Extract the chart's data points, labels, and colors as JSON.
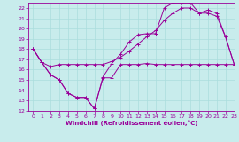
{
  "title": "",
  "xlabel": "Windchill (Refroidissement éolien,°C)",
  "ylabel": "",
  "background_color": "#c8ecec",
  "line_color": "#990099",
  "grid_color": "#aadddd",
  "xlim": [
    -0.5,
    23
  ],
  "ylim": [
    12,
    22.5
  ],
  "xticks": [
    0,
    1,
    2,
    3,
    4,
    5,
    6,
    7,
    8,
    9,
    10,
    11,
    12,
    13,
    14,
    15,
    16,
    17,
    18,
    19,
    20,
    21,
    22,
    23
  ],
  "yticks": [
    12,
    13,
    14,
    15,
    16,
    17,
    18,
    19,
    20,
    21,
    22
  ],
  "line1_x": [
    0,
    1,
    2,
    3,
    4,
    5,
    6,
    7,
    8,
    9,
    10,
    11,
    12,
    13,
    14,
    15,
    16,
    17,
    18,
    19,
    20,
    21,
    22,
    23
  ],
  "line1_y": [
    18,
    16.7,
    15.5,
    15.0,
    13.7,
    13.3,
    13.3,
    12.2,
    15.2,
    15.2,
    16.5,
    16.5,
    16.5,
    16.6,
    16.5,
    16.5,
    16.5,
    16.5,
    16.5,
    16.5,
    16.5,
    16.5,
    16.5,
    16.5
  ],
  "line2_x": [
    0,
    1,
    2,
    3,
    4,
    5,
    6,
    7,
    8,
    9,
    10,
    11,
    12,
    13,
    14,
    15,
    16,
    17,
    18,
    19,
    20,
    21,
    22,
    23
  ],
  "line2_y": [
    18,
    16.7,
    15.5,
    15.0,
    13.7,
    13.3,
    13.3,
    12.2,
    15.3,
    16.6,
    17.5,
    18.7,
    19.4,
    19.5,
    19.5,
    22.0,
    22.5,
    22.5,
    22.5,
    21.5,
    21.5,
    21.2,
    19.2,
    16.5
  ],
  "line3_x": [
    0,
    1,
    2,
    3,
    4,
    5,
    6,
    7,
    8,
    9,
    10,
    11,
    12,
    13,
    14,
    15,
    16,
    17,
    18,
    19,
    20,
    21,
    22,
    23
  ],
  "line3_y": [
    18,
    16.7,
    16.3,
    16.5,
    16.5,
    16.5,
    16.5,
    16.5,
    16.5,
    16.8,
    17.2,
    17.8,
    18.5,
    19.2,
    19.8,
    20.8,
    21.5,
    22.0,
    22.0,
    21.5,
    21.8,
    21.5,
    19.2,
    16.5
  ]
}
